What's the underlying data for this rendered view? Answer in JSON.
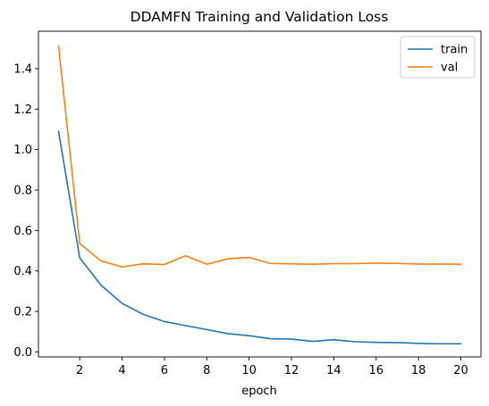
{
  "chart_data": {
    "type": "line",
    "title": "DDAMFN Training and Validation Loss",
    "xlabel": "epoch",
    "ylabel": "",
    "xlim": [
      0.05,
      20.95
    ],
    "ylim": [
      -0.025,
      1.585
    ],
    "xticks": [
      2,
      4,
      6,
      8,
      10,
      12,
      14,
      16,
      18,
      20
    ],
    "yticks": [
      0.0,
      0.2,
      0.4,
      0.6,
      0.8,
      1.0,
      1.2,
      1.4
    ],
    "legend_position": "top-right",
    "x": [
      1,
      2,
      3,
      4,
      5,
      6,
      7,
      8,
      9,
      10,
      11,
      12,
      13,
      14,
      15,
      16,
      17,
      18,
      19,
      20
    ],
    "series": [
      {
        "name": "train",
        "color": "#1f77b4",
        "values": [
          1.09,
          0.465,
          0.33,
          0.24,
          0.185,
          0.15,
          0.13,
          0.11,
          0.09,
          0.08,
          0.065,
          0.063,
          0.052,
          0.06,
          0.05,
          0.047,
          0.046,
          0.042,
          0.04,
          0.04
        ]
      },
      {
        "name": "val",
        "color": "#ff7f0e",
        "values": [
          1.51,
          0.535,
          0.45,
          0.42,
          0.435,
          0.432,
          0.475,
          0.433,
          0.46,
          0.467,
          0.437,
          0.435,
          0.433,
          0.436,
          0.436,
          0.439,
          0.437,
          0.434,
          0.434,
          0.433
        ]
      }
    ]
  }
}
